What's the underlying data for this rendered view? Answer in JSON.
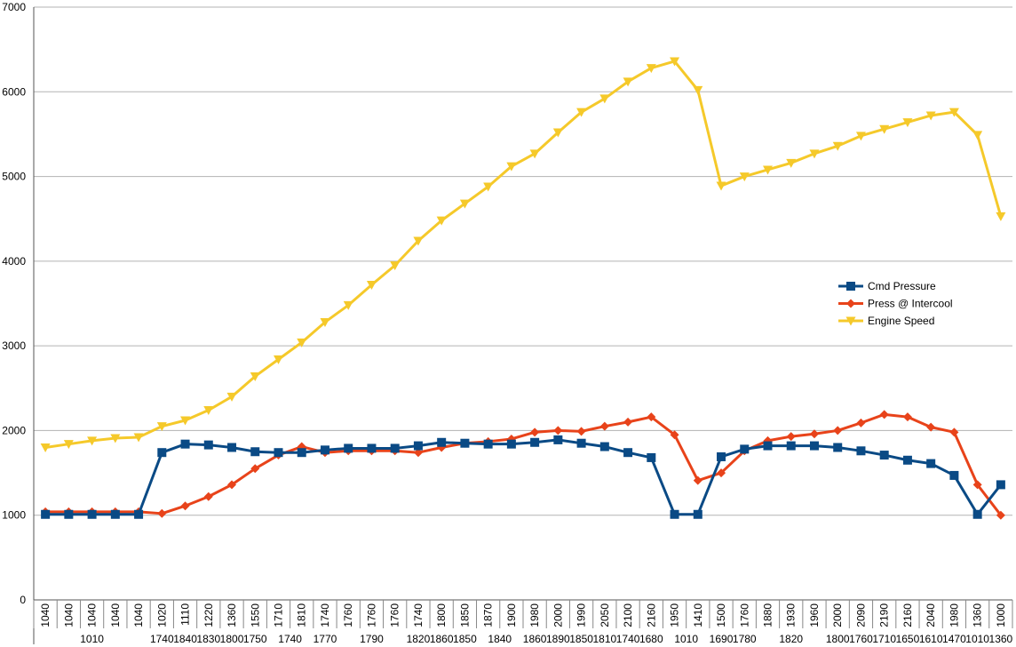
{
  "chart_data": {
    "type": "line",
    "title": "",
    "xlabel": "",
    "ylabel": "",
    "ylim": [
      0,
      7000
    ],
    "y_ticks": [
      0,
      1000,
      2000,
      3000,
      4000,
      5000,
      6000,
      7000
    ],
    "grid": true,
    "legend_position": "right",
    "x_labels_primary": [
      "1040",
      "1040",
      "1040",
      "1040",
      "1040",
      "1020",
      "1110",
      "1220",
      "1360",
      "1550",
      "1710",
      "1810",
      "1740",
      "1760",
      "1760",
      "1760",
      "1740",
      "1800",
      "1850",
      "1870",
      "1900",
      "1980",
      "2000",
      "1990",
      "2050",
      "2100",
      "2160",
      "1950",
      "1410",
      "1500",
      "1760",
      "1880",
      "1930",
      "1960",
      "2000",
      "2090",
      "2190",
      "2160",
      "2040",
      "1980",
      "1360",
      "1000"
    ],
    "x_labels_secondary": [
      {
        "i": 2,
        "label": "1010"
      },
      {
        "i": 5,
        "label": "1740"
      },
      {
        "i": 6,
        "label": "1840"
      },
      {
        "i": 7,
        "label": "1830"
      },
      {
        "i": 8,
        "label": "1800"
      },
      {
        "i": 9,
        "label": "1750"
      },
      {
        "i": 10.5,
        "label": "1740"
      },
      {
        "i": 12,
        "label": "1770"
      },
      {
        "i": 14,
        "label": "1790"
      },
      {
        "i": 16,
        "label": "1820"
      },
      {
        "i": 17,
        "label": "1860"
      },
      {
        "i": 18,
        "label": "1850"
      },
      {
        "i": 19.5,
        "label": "1840"
      },
      {
        "i": 21,
        "label": "1860"
      },
      {
        "i": 22,
        "label": "1890"
      },
      {
        "i": 23,
        "label": "1850"
      },
      {
        "i": 24,
        "label": "1810"
      },
      {
        "i": 25,
        "label": "1740"
      },
      {
        "i": 26,
        "label": "1680"
      },
      {
        "i": 27.5,
        "label": "1010"
      },
      {
        "i": 29,
        "label": "1690"
      },
      {
        "i": 30,
        "label": "1780"
      },
      {
        "i": 32,
        "label": "1820"
      },
      {
        "i": 34,
        "label": "1800"
      },
      {
        "i": 35,
        "label": "1760"
      },
      {
        "i": 36,
        "label": "1710"
      },
      {
        "i": 37,
        "label": "1650"
      },
      {
        "i": 38,
        "label": "1610"
      },
      {
        "i": 39,
        "label": "1470"
      },
      {
        "i": 40,
        "label": "1010"
      },
      {
        "i": 41,
        "label": "1360"
      }
    ],
    "series": [
      {
        "name": "Cmd Pressure",
        "color": "#0a4a85",
        "marker": "square",
        "values": [
          1010,
          1010,
          1010,
          1010,
          1010,
          1740,
          1840,
          1830,
          1800,
          1750,
          1740,
          1740,
          1770,
          1790,
          1790,
          1790,
          1820,
          1860,
          1850,
          1840,
          1840,
          1860,
          1890,
          1850,
          1810,
          1740,
          1680,
          1010,
          1010,
          1690,
          1780,
          1820,
          1820,
          1820,
          1800,
          1760,
          1710,
          1650,
          1610,
          1470,
          1010,
          1360
        ]
      },
      {
        "name": "Press @ Intercool",
        "color": "#e8431a",
        "marker": "diamond",
        "values": [
          1040,
          1040,
          1040,
          1040,
          1040,
          1020,
          1110,
          1220,
          1360,
          1550,
          1710,
          1810,
          1740,
          1760,
          1760,
          1760,
          1740,
          1800,
          1850,
          1870,
          1900,
          1980,
          2000,
          1990,
          2050,
          2100,
          2160,
          1950,
          1410,
          1500,
          1760,
          1880,
          1930,
          1960,
          2000,
          2090,
          2190,
          2160,
          2040,
          1980,
          1360,
          1000
        ]
      },
      {
        "name": "Engine Speed",
        "color": "#f5c92a",
        "marker": "triangle-down",
        "values": [
          1800,
          1840,
          1880,
          1910,
          1920,
          2050,
          2120,
          2240,
          2400,
          2640,
          2840,
          3040,
          3280,
          3480,
          3720,
          3950,
          4240,
          4480,
          4680,
          4880,
          5120,
          5270,
          5520,
          5760,
          5920,
          6120,
          6280,
          6360,
          6020,
          4890,
          5000,
          5080,
          5160,
          5270,
          5360,
          5480,
          5560,
          5640,
          5720,
          5760,
          5490,
          4530
        ]
      }
    ]
  }
}
